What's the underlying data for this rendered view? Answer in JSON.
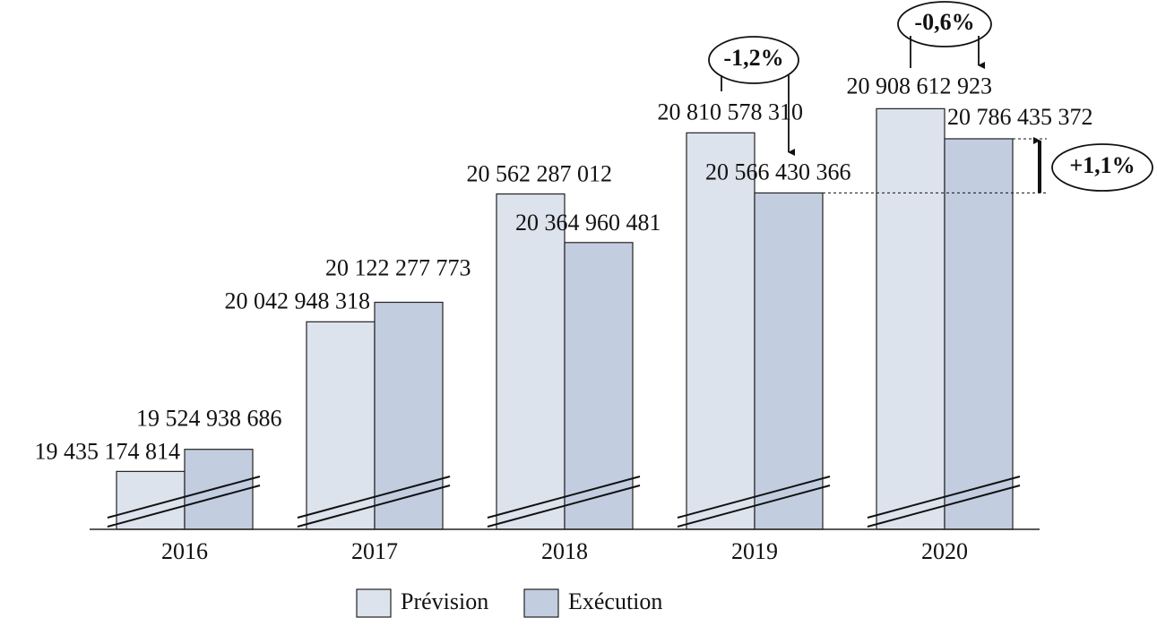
{
  "chart_data": {
    "type": "bar",
    "categories": [
      "2016",
      "2017",
      "2018",
      "2019",
      "2020"
    ],
    "series": [
      {
        "name": "Prévision",
        "color": "#dde3ed",
        "values": [
          19435174814,
          20042948318,
          20562287012,
          20810578310,
          20908612923
        ],
        "value_labels": [
          "19 435 174 814",
          "20 042 948 318",
          "20 562 287 012",
          "20 810 578 310",
          "20 908 612 923"
        ]
      },
      {
        "name": "Exécution",
        "color": "#c3cde0",
        "values": [
          19524938686,
          20122277773,
          20364960481,
          20566430366,
          20786435372
        ],
        "value_labels": [
          "19 524 938 686",
          "20 122 277 773",
          "20 364 960 481",
          "20 566 430 366",
          "20 786 435 372"
        ]
      }
    ],
    "ylim": [
      19200000000,
      20950000000
    ],
    "annotations": [
      "-1,2%",
      "-0,6%",
      "+1,1%"
    ],
    "legend": "bottom"
  }
}
